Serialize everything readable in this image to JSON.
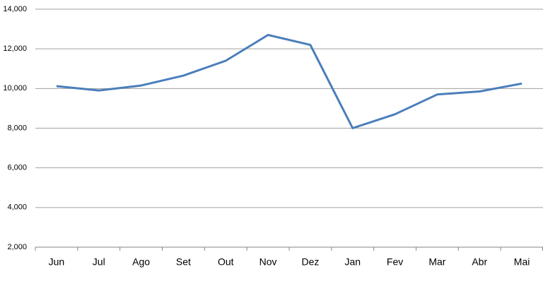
{
  "chart_data": {
    "type": "line",
    "categories": [
      "Jun",
      "Jul",
      "Ago",
      "Set",
      "Out",
      "Nov",
      "Dez",
      "Jan",
      "Fev",
      "Mar",
      "Abr",
      "Mai"
    ],
    "values": [
      10120,
      9900,
      10150,
      10650,
      11400,
      12700,
      12200,
      8000,
      8700,
      9700,
      9850,
      10250
    ],
    "color": "#4a7ebb",
    "ylim": [
      2000,
      14000
    ],
    "yticks": [
      {
        "value": 2000,
        "label": "2,000"
      },
      {
        "value": 4000,
        "label": "4,000"
      },
      {
        "value": 6000,
        "label": "6,000"
      },
      {
        "value": 8000,
        "label": "8,000"
      },
      {
        "value": 10000,
        "label": "10,000"
      },
      {
        "value": 12000,
        "label": "12,000"
      },
      {
        "value": 14000,
        "label": "14,000"
      }
    ],
    "grid": true
  }
}
